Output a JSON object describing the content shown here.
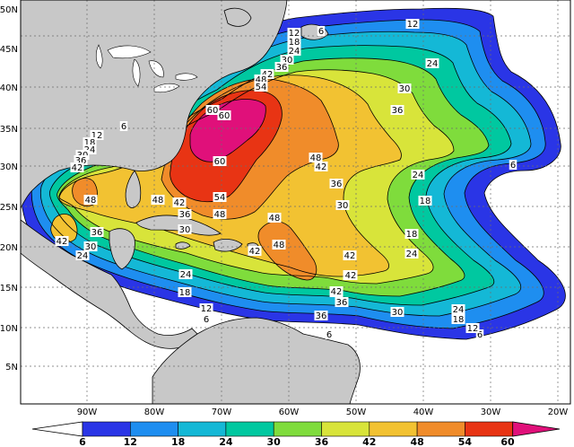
{
  "map": {
    "lat_labels": [
      "50N",
      "45N",
      "40N",
      "35N",
      "30N",
      "25N",
      "20N",
      "15N",
      "10N",
      "5N"
    ],
    "lon_labels": [
      "90W",
      "80W",
      "70W",
      "60W",
      "50W",
      "40W",
      "30W",
      "20W"
    ],
    "colors": {
      "land": "#c8c8c8",
      "ocean": "#ffffff",
      "grid": "#6e6e6e",
      "c6": "#2a35e6",
      "c12": "#1e8ef0",
      "c18": "#14b8d6",
      "c24": "#00c8a0",
      "c30": "#7fdc3c",
      "c36": "#d8e43a",
      "c42": "#f2c232",
      "c48": "#f08c2a",
      "c54": "#e83414",
      "c60": "#e0107a"
    },
    "contour_labels": [
      {
        "v": "12"
      },
      {
        "v": "6"
      },
      {
        "v": "12"
      },
      {
        "v": "18"
      },
      {
        "v": "24"
      },
      {
        "v": "30"
      },
      {
        "v": "36"
      },
      {
        "v": "42"
      },
      {
        "v": "48"
      },
      {
        "v": "54"
      },
      {
        "v": "60"
      },
      {
        "v": "60"
      },
      {
        "v": "60"
      },
      {
        "v": "24"
      },
      {
        "v": "30"
      },
      {
        "v": "36"
      },
      {
        "v": "12"
      },
      {
        "v": "6"
      },
      {
        "v": "48"
      },
      {
        "v": "42"
      },
      {
        "v": "36"
      },
      {
        "v": "30"
      },
      {
        "v": "24"
      },
      {
        "v": "18"
      },
      {
        "v": "6"
      },
      {
        "v": "12"
      },
      {
        "v": "18"
      },
      {
        "v": "24"
      },
      {
        "v": "30"
      },
      {
        "v": "36"
      },
      {
        "v": "42"
      },
      {
        "v": "48"
      },
      {
        "v": "48"
      },
      {
        "v": "42"
      },
      {
        "v": "36"
      },
      {
        "v": "30"
      },
      {
        "v": "42"
      },
      {
        "v": "36"
      },
      {
        "v": "30"
      },
      {
        "v": "24"
      },
      {
        "v": "48"
      },
      {
        "v": "42"
      },
      {
        "v": "54"
      },
      {
        "v": "48"
      },
      {
        "v": "48"
      },
      {
        "v": "42"
      },
      {
        "v": "36"
      },
      {
        "v": "30"
      },
      {
        "v": "24"
      },
      {
        "v": "18"
      },
      {
        "v": "24"
      },
      {
        "v": "18"
      },
      {
        "v": "12"
      },
      {
        "v": "6"
      },
      {
        "v": "36"
      },
      {
        "v": "42"
      },
      {
        "v": "42"
      },
      {
        "v": "36"
      },
      {
        "v": "30"
      },
      {
        "v": "24"
      },
      {
        "v": "24"
      },
      {
        "v": "18"
      },
      {
        "v": "18"
      },
      {
        "v": "12"
      },
      {
        "v": "6"
      },
      {
        "v": "18"
      },
      {
        "v": "12"
      },
      {
        "v": "6"
      }
    ]
  },
  "colorbar": {
    "labels": [
      "6",
      "12",
      "18",
      "24",
      "30",
      "36",
      "42",
      "48",
      "54",
      "60"
    ]
  }
}
